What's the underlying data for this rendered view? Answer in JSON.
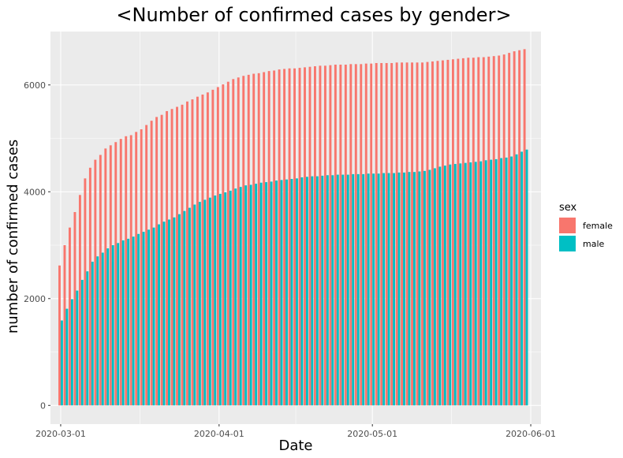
{
  "chart_data": {
    "type": "bar",
    "title": "<Number of confirmed cases by gender>",
    "xlabel": "Date",
    "ylabel": "number of confirmed cases",
    "x_range": [
      "2020-02-28",
      "2020-06-03"
    ],
    "ylim": [
      -350,
      7000
    ],
    "y_ticks": [
      0,
      2000,
      4000,
      6000
    ],
    "x_ticks": [
      "2020-03-01",
      "2020-04-01",
      "2020-05-01",
      "2020-06-01"
    ],
    "x_tick_labels": [
      "2020-03-01",
      "2020-04-01",
      "2020-05-01",
      "2020-06-01"
    ],
    "grid": true,
    "background": "#ebebeb",
    "legend": {
      "title": "sex",
      "placement": "right",
      "entries": [
        {
          "label": "female",
          "color": "#f8766d"
        },
        {
          "label": "male",
          "color": "#00bfc4"
        }
      ]
    },
    "bar_position": "dodge",
    "x": [
      "2020-03-01",
      "2020-03-02",
      "2020-03-03",
      "2020-03-04",
      "2020-03-05",
      "2020-03-06",
      "2020-03-07",
      "2020-03-08",
      "2020-03-09",
      "2020-03-10",
      "2020-03-11",
      "2020-03-12",
      "2020-03-13",
      "2020-03-14",
      "2020-03-15",
      "2020-03-16",
      "2020-03-17",
      "2020-03-18",
      "2020-03-19",
      "2020-03-20",
      "2020-03-21",
      "2020-03-22",
      "2020-03-23",
      "2020-03-24",
      "2020-03-25",
      "2020-03-26",
      "2020-03-27",
      "2020-03-28",
      "2020-03-29",
      "2020-03-30",
      "2020-03-31",
      "2020-04-01",
      "2020-04-02",
      "2020-04-03",
      "2020-04-04",
      "2020-04-05",
      "2020-04-06",
      "2020-04-07",
      "2020-04-08",
      "2020-04-09",
      "2020-04-10",
      "2020-04-11",
      "2020-04-12",
      "2020-04-13",
      "2020-04-14",
      "2020-04-15",
      "2020-04-16",
      "2020-04-17",
      "2020-04-18",
      "2020-04-19",
      "2020-04-20",
      "2020-04-21",
      "2020-04-22",
      "2020-04-23",
      "2020-04-24",
      "2020-04-25",
      "2020-04-26",
      "2020-04-27",
      "2020-04-28",
      "2020-04-29",
      "2020-04-30",
      "2020-05-01",
      "2020-05-02",
      "2020-05-03",
      "2020-05-04",
      "2020-05-05",
      "2020-05-06",
      "2020-05-07",
      "2020-05-08",
      "2020-05-09",
      "2020-05-10",
      "2020-05-11",
      "2020-05-12",
      "2020-05-13",
      "2020-05-14",
      "2020-05-15",
      "2020-05-16",
      "2020-05-17",
      "2020-05-18",
      "2020-05-19",
      "2020-05-20",
      "2020-05-21",
      "2020-05-22",
      "2020-05-23",
      "2020-05-24",
      "2020-05-25",
      "2020-05-26",
      "2020-05-27",
      "2020-05-28",
      "2020-05-29",
      "2020-05-30",
      "2020-05-31"
    ],
    "series": [
      {
        "name": "female",
        "color": "#f8766d",
        "values": [
          2620,
          3000,
          3330,
          3620,
          3940,
          4250,
          4450,
          4600,
          4690,
          4810,
          4870,
          4930,
          4990,
          5040,
          5060,
          5120,
          5170,
          5250,
          5330,
          5400,
          5440,
          5510,
          5550,
          5590,
          5630,
          5690,
          5730,
          5780,
          5820,
          5860,
          5910,
          5960,
          6010,
          6060,
          6110,
          6140,
          6170,
          6190,
          6210,
          6220,
          6240,
          6260,
          6270,
          6290,
          6300,
          6310,
          6310,
          6320,
          6330,
          6340,
          6350,
          6360,
          6360,
          6370,
          6380,
          6380,
          6380,
          6390,
          6390,
          6390,
          6400,
          6400,
          6410,
          6410,
          6410,
          6410,
          6420,
          6420,
          6420,
          6420,
          6420,
          6420,
          6430,
          6440,
          6450,
          6460,
          6470,
          6480,
          6490,
          6500,
          6510,
          6510,
          6520,
          6520,
          6530,
          6540,
          6550,
          6570,
          6600,
          6630,
          6650,
          6670
        ]
      },
      {
        "name": "male",
        "color": "#00bfc4",
        "values": [
          1590,
          1810,
          1990,
          2150,
          2350,
          2510,
          2690,
          2790,
          2860,
          2940,
          3000,
          3040,
          3090,
          3120,
          3160,
          3210,
          3250,
          3290,
          3330,
          3390,
          3440,
          3480,
          3520,
          3580,
          3640,
          3700,
          3760,
          3810,
          3850,
          3890,
          3930,
          3960,
          3990,
          4020,
          4060,
          4090,
          4120,
          4130,
          4150,
          4170,
          4180,
          4190,
          4210,
          4220,
          4230,
          4240,
          4250,
          4270,
          4280,
          4290,
          4290,
          4300,
          4310,
          4310,
          4320,
          4320,
          4320,
          4330,
          4330,
          4330,
          4340,
          4340,
          4340,
          4350,
          4350,
          4350,
          4360,
          4360,
          4370,
          4370,
          4380,
          4390,
          4410,
          4440,
          4470,
          4490,
          4510,
          4520,
          4530,
          4540,
          4550,
          4560,
          4570,
          4590,
          4600,
          4610,
          4630,
          4640,
          4660,
          4700,
          4750,
          4790
        ]
      }
    ]
  }
}
